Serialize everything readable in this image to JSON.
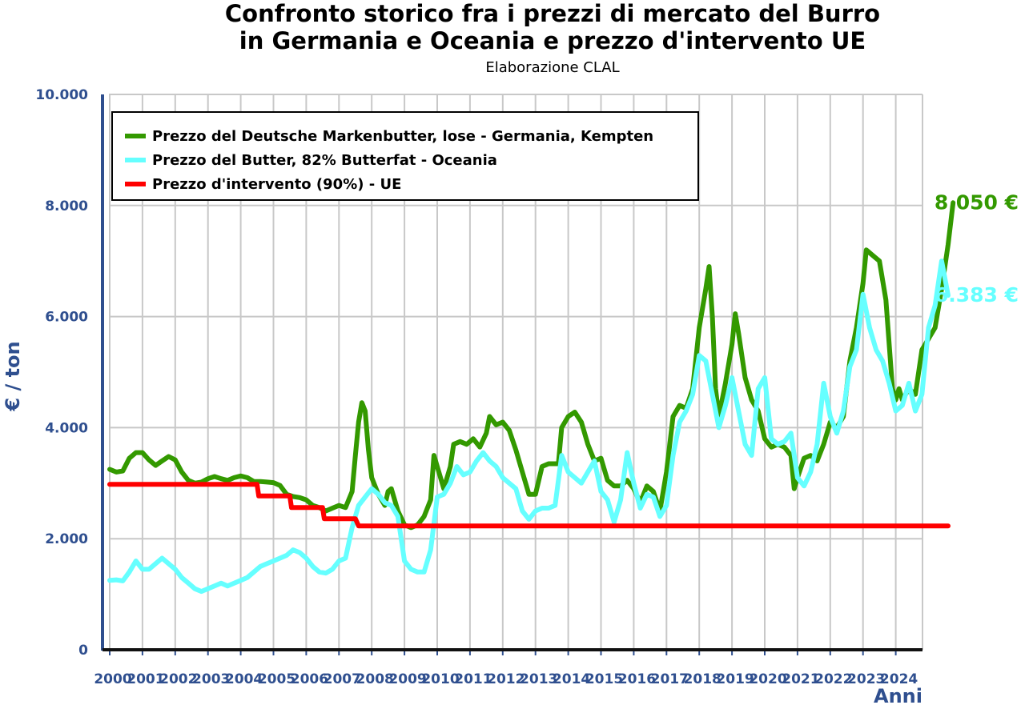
{
  "chart_data": {
    "type": "line",
    "title_line1": "Confronto storico fra i prezzi di mercato del Burro",
    "title_line2": "in Germania e Oceania e prezzo d'intervento UE",
    "subtitle": "Elaborazione CLAL",
    "ylabel": "€ / ton",
    "xlabel": "Anni",
    "ylim": [
      0,
      10000
    ],
    "xlim": [
      2000,
      2025
    ],
    "grid": true,
    "legend_position": "top-left",
    "y_ticks": [
      {
        "value": 0,
        "label": "0"
      },
      {
        "value": 2000,
        "label": "2.000"
      },
      {
        "value": 4000,
        "label": "4.000"
      },
      {
        "value": 6000,
        "label": "6.000"
      },
      {
        "value": 8000,
        "label": "8.000"
      },
      {
        "value": 10000,
        "label": "10.000"
      }
    ],
    "x_ticks": [
      "2000",
      "2001",
      "2002",
      "2003",
      "2004",
      "2005",
      "2006",
      "2007",
      "2008",
      "2009",
      "2010",
      "2011",
      "2012",
      "2013",
      "2014",
      "2015",
      "2016",
      "2017",
      "2018",
      "2019",
      "2020",
      "2021",
      "2022",
      "2023",
      "2024"
    ],
    "series": [
      {
        "name": "Prezzo del Deutsche Markenbutter, lose - Germania, Kempten",
        "color": "#339900",
        "end_label": "8.050 €",
        "points": [
          [
            2000.0,
            3250
          ],
          [
            2000.2,
            3200
          ],
          [
            2000.4,
            3220
          ],
          [
            2000.6,
            3450
          ],
          [
            2000.8,
            3550
          ],
          [
            2001.0,
            3550
          ],
          [
            2001.2,
            3420
          ],
          [
            2001.4,
            3320
          ],
          [
            2001.6,
            3400
          ],
          [
            2001.8,
            3480
          ],
          [
            2002.0,
            3420
          ],
          [
            2002.2,
            3200
          ],
          [
            2002.4,
            3050
          ],
          [
            2002.6,
            3000
          ],
          [
            2002.8,
            3020
          ],
          [
            2003.0,
            3080
          ],
          [
            2003.2,
            3120
          ],
          [
            2003.4,
            3080
          ],
          [
            2003.6,
            3050
          ],
          [
            2003.8,
            3100
          ],
          [
            2004.0,
            3130
          ],
          [
            2004.2,
            3100
          ],
          [
            2004.4,
            3030
          ],
          [
            2004.6,
            3030
          ],
          [
            2004.8,
            3020
          ],
          [
            2005.0,
            3010
          ],
          [
            2005.2,
            2960
          ],
          [
            2005.4,
            2800
          ],
          [
            2005.6,
            2760
          ],
          [
            2005.8,
            2740
          ],
          [
            2006.0,
            2700
          ],
          [
            2006.2,
            2600
          ],
          [
            2006.4,
            2560
          ],
          [
            2006.6,
            2500
          ],
          [
            2006.8,
            2550
          ],
          [
            2007.0,
            2600
          ],
          [
            2007.2,
            2560
          ],
          [
            2007.4,
            2850
          ],
          [
            2007.5,
            3500
          ],
          [
            2007.6,
            4100
          ],
          [
            2007.7,
            4450
          ],
          [
            2007.8,
            4300
          ],
          [
            2007.9,
            3600
          ],
          [
            2008.0,
            3100
          ],
          [
            2008.2,
            2800
          ],
          [
            2008.4,
            2600
          ],
          [
            2008.5,
            2850
          ],
          [
            2008.6,
            2900
          ],
          [
            2008.8,
            2500
          ],
          [
            2009.0,
            2250
          ],
          [
            2009.2,
            2200
          ],
          [
            2009.4,
            2250
          ],
          [
            2009.6,
            2400
          ],
          [
            2009.8,
            2700
          ],
          [
            2009.9,
            3500
          ],
          [
            2010.0,
            3300
          ],
          [
            2010.2,
            2900
          ],
          [
            2010.4,
            3300
          ],
          [
            2010.5,
            3700
          ],
          [
            2010.7,
            3750
          ],
          [
            2010.9,
            3700
          ],
          [
            2011.1,
            3800
          ],
          [
            2011.3,
            3650
          ],
          [
            2011.5,
            3900
          ],
          [
            2011.6,
            4200
          ],
          [
            2011.8,
            4050
          ],
          [
            2012.0,
            4100
          ],
          [
            2012.2,
            3950
          ],
          [
            2012.4,
            3600
          ],
          [
            2012.6,
            3200
          ],
          [
            2012.8,
            2800
          ],
          [
            2013.0,
            2800
          ],
          [
            2013.2,
            3300
          ],
          [
            2013.4,
            3350
          ],
          [
            2013.6,
            3350
          ],
          [
            2013.7,
            3350
          ],
          [
            2013.8,
            4000
          ],
          [
            2014.0,
            4200
          ],
          [
            2014.2,
            4280
          ],
          [
            2014.4,
            4100
          ],
          [
            2014.6,
            3700
          ],
          [
            2014.8,
            3400
          ],
          [
            2015.0,
            3450
          ],
          [
            2015.2,
            3050
          ],
          [
            2015.4,
            2950
          ],
          [
            2015.6,
            2950
          ],
          [
            2015.8,
            3050
          ],
          [
            2016.0,
            2900
          ],
          [
            2016.2,
            2650
          ],
          [
            2016.4,
            2950
          ],
          [
            2016.6,
            2850
          ],
          [
            2016.8,
            2500
          ],
          [
            2017.0,
            3200
          ],
          [
            2017.2,
            4200
          ],
          [
            2017.4,
            4400
          ],
          [
            2017.6,
            4350
          ],
          [
            2017.8,
            4700
          ],
          [
            2018.0,
            5800
          ],
          [
            2018.2,
            6500
          ],
          [
            2018.3,
            6900
          ],
          [
            2018.4,
            6000
          ],
          [
            2018.5,
            4700
          ],
          [
            2018.6,
            4200
          ],
          [
            2018.8,
            4800
          ],
          [
            2019.0,
            5500
          ],
          [
            2019.1,
            6050
          ],
          [
            2019.2,
            5700
          ],
          [
            2019.4,
            4900
          ],
          [
            2019.6,
            4500
          ],
          [
            2019.8,
            4300
          ],
          [
            2020.0,
            3800
          ],
          [
            2020.2,
            3650
          ],
          [
            2020.4,
            3700
          ],
          [
            2020.6,
            3650
          ],
          [
            2020.8,
            3500
          ],
          [
            2020.9,
            2900
          ],
          [
            2021.0,
            3100
          ],
          [
            2021.2,
            3450
          ],
          [
            2021.4,
            3500
          ],
          [
            2021.6,
            3400
          ],
          [
            2021.8,
            3700
          ],
          [
            2022.0,
            4100
          ],
          [
            2022.2,
            4000
          ],
          [
            2022.4,
            4200
          ],
          [
            2022.6,
            5200
          ],
          [
            2022.8,
            5800
          ],
          [
            2023.0,
            6600
          ],
          [
            2023.1,
            7200
          ],
          [
            2023.3,
            7100
          ],
          [
            2023.5,
            7000
          ],
          [
            2023.7,
            6300
          ],
          [
            2023.9,
            4700
          ],
          [
            2024.0,
            4500
          ],
          [
            2024.1,
            4700
          ],
          [
            2024.2,
            4500
          ],
          [
            2024.4,
            4700
          ],
          [
            2024.6,
            4600
          ],
          [
            2024.8,
            5400
          ],
          [
            2025.0,
            5600
          ],
          [
            2025.2,
            5800
          ],
          [
            2025.4,
            6500
          ],
          [
            2025.6,
            7300
          ],
          [
            2025.75,
            8050
          ]
        ]
      },
      {
        "name": "Prezzo del Butter, 82% Butterfat - Oceania",
        "color": "#66ffff",
        "end_label": "6.383 €",
        "points": [
          [
            2000.0,
            1250
          ],
          [
            2000.2,
            1260
          ],
          [
            2000.4,
            1240
          ],
          [
            2000.6,
            1400
          ],
          [
            2000.8,
            1600
          ],
          [
            2001.0,
            1450
          ],
          [
            2001.2,
            1450
          ],
          [
            2001.4,
            1550
          ],
          [
            2001.6,
            1650
          ],
          [
            2001.8,
            1550
          ],
          [
            2002.0,
            1450
          ],
          [
            2002.2,
            1300
          ],
          [
            2002.4,
            1200
          ],
          [
            2002.6,
            1100
          ],
          [
            2002.8,
            1050
          ],
          [
            2003.0,
            1100
          ],
          [
            2003.2,
            1150
          ],
          [
            2003.4,
            1200
          ],
          [
            2003.6,
            1150
          ],
          [
            2003.8,
            1200
          ],
          [
            2004.0,
            1250
          ],
          [
            2004.2,
            1300
          ],
          [
            2004.4,
            1400
          ],
          [
            2004.6,
            1500
          ],
          [
            2004.8,
            1550
          ],
          [
            2005.0,
            1600
          ],
          [
            2005.2,
            1650
          ],
          [
            2005.4,
            1700
          ],
          [
            2005.6,
            1800
          ],
          [
            2005.8,
            1750
          ],
          [
            2006.0,
            1650
          ],
          [
            2006.2,
            1500
          ],
          [
            2006.4,
            1400
          ],
          [
            2006.6,
            1380
          ],
          [
            2006.8,
            1450
          ],
          [
            2007.0,
            1600
          ],
          [
            2007.2,
            1650
          ],
          [
            2007.4,
            2200
          ],
          [
            2007.6,
            2600
          ],
          [
            2007.8,
            2750
          ],
          [
            2008.0,
            2900
          ],
          [
            2008.2,
            2800
          ],
          [
            2008.4,
            2650
          ],
          [
            2008.6,
            2600
          ],
          [
            2008.8,
            2400
          ],
          [
            2009.0,
            1600
          ],
          [
            2009.2,
            1450
          ],
          [
            2009.4,
            1400
          ],
          [
            2009.6,
            1400
          ],
          [
            2009.8,
            1800
          ],
          [
            2010.0,
            2750
          ],
          [
            2010.2,
            2800
          ],
          [
            2010.4,
            3000
          ],
          [
            2010.6,
            3300
          ],
          [
            2010.8,
            3150
          ],
          [
            2011.0,
            3200
          ],
          [
            2011.2,
            3400
          ],
          [
            2011.4,
            3550
          ],
          [
            2011.6,
            3400
          ],
          [
            2011.8,
            3300
          ],
          [
            2012.0,
            3100
          ],
          [
            2012.2,
            3000
          ],
          [
            2012.4,
            2900
          ],
          [
            2012.6,
            2500
          ],
          [
            2012.8,
            2350
          ],
          [
            2013.0,
            2500
          ],
          [
            2013.2,
            2550
          ],
          [
            2013.4,
            2550
          ],
          [
            2013.6,
            2600
          ],
          [
            2013.8,
            3500
          ],
          [
            2014.0,
            3200
          ],
          [
            2014.2,
            3100
          ],
          [
            2014.4,
            3000
          ],
          [
            2014.6,
            3200
          ],
          [
            2014.8,
            3400
          ],
          [
            2015.0,
            2850
          ],
          [
            2015.2,
            2700
          ],
          [
            2015.4,
            2300
          ],
          [
            2015.6,
            2700
          ],
          [
            2015.8,
            3550
          ],
          [
            2016.0,
            3000
          ],
          [
            2016.2,
            2550
          ],
          [
            2016.4,
            2800
          ],
          [
            2016.6,
            2750
          ],
          [
            2016.8,
            2400
          ],
          [
            2017.0,
            2600
          ],
          [
            2017.2,
            3500
          ],
          [
            2017.4,
            4100
          ],
          [
            2017.6,
            4300
          ],
          [
            2017.8,
            4600
          ],
          [
            2018.0,
            5300
          ],
          [
            2018.2,
            5200
          ],
          [
            2018.4,
            4600
          ],
          [
            2018.6,
            4000
          ],
          [
            2018.8,
            4400
          ],
          [
            2019.0,
            4900
          ],
          [
            2019.2,
            4300
          ],
          [
            2019.4,
            3700
          ],
          [
            2019.6,
            3500
          ],
          [
            2019.8,
            4700
          ],
          [
            2020.0,
            4900
          ],
          [
            2020.2,
            3800
          ],
          [
            2020.4,
            3700
          ],
          [
            2020.6,
            3750
          ],
          [
            2020.8,
            3900
          ],
          [
            2021.0,
            3100
          ],
          [
            2021.2,
            2950
          ],
          [
            2021.4,
            3200
          ],
          [
            2021.6,
            3700
          ],
          [
            2021.8,
            4800
          ],
          [
            2022.0,
            4200
          ],
          [
            2022.2,
            3900
          ],
          [
            2022.4,
            4300
          ],
          [
            2022.6,
            5100
          ],
          [
            2022.8,
            5400
          ],
          [
            2023.0,
            6400
          ],
          [
            2023.2,
            5800
          ],
          [
            2023.4,
            5400
          ],
          [
            2023.6,
            5200
          ],
          [
            2023.8,
            4800
          ],
          [
            2024.0,
            4300
          ],
          [
            2024.2,
            4400
          ],
          [
            2024.4,
            4800
          ],
          [
            2024.6,
            4300
          ],
          [
            2024.8,
            4600
          ],
          [
            2025.0,
            5800
          ],
          [
            2025.2,
            6200
          ],
          [
            2025.4,
            7000
          ],
          [
            2025.6,
            6383
          ]
        ]
      },
      {
        "name": "Prezzo d'intervento (90%) - UE",
        "color": "#ff0000",
        "points": [
          [
            2000.0,
            2980
          ],
          [
            2004.5,
            2980
          ],
          [
            2004.55,
            2770
          ],
          [
            2005.5,
            2770
          ],
          [
            2005.55,
            2560
          ],
          [
            2006.5,
            2560
          ],
          [
            2006.55,
            2360
          ],
          [
            2007.5,
            2360
          ],
          [
            2007.6,
            2230
          ],
          [
            2025.6,
            2230
          ]
        ]
      }
    ]
  }
}
